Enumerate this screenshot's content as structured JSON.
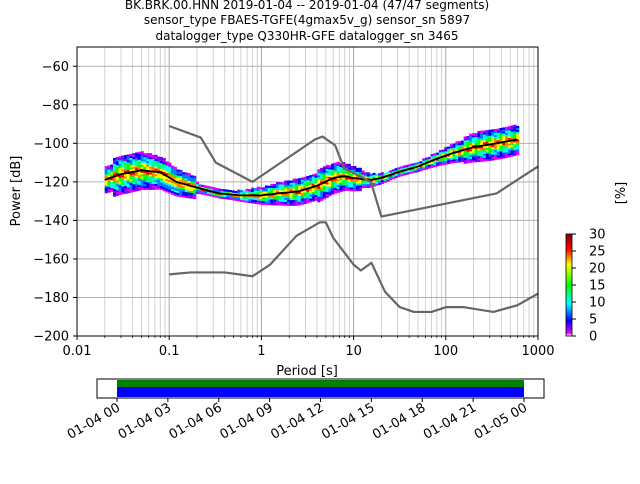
{
  "title": {
    "line1": "BK.BRK.00.HNN   2019-01-04 -- 2019-01-04  (47/47 segments)",
    "line2": "sensor_type FBAES-TGFE(4gmax5v_g) sensor_sn 5897",
    "line3": "datalogger_type Q330HR-GFE datalogger_sn 3465"
  },
  "chart_data": {
    "type": "heatmap",
    "xlabel": "Period [s]",
    "ylabel": "Power [dB]",
    "x_scale": "log",
    "xlim": [
      0.01,
      1000
    ],
    "ylim": [
      -200,
      -50
    ],
    "grid": true,
    "x_ticks": [
      {
        "value": 0.01,
        "label": "0.01"
      },
      {
        "value": 0.1,
        "label": "0.1"
      },
      {
        "value": 1,
        "label": "1"
      },
      {
        "value": 10,
        "label": "10"
      },
      {
        "value": 100,
        "label": "100"
      },
      {
        "value": 1000,
        "label": "1000"
      }
    ],
    "y_ticks": [
      {
        "value": -60,
        "label": "−60"
      },
      {
        "value": -80,
        "label": "−80"
      },
      {
        "value": -100,
        "label": "−100"
      },
      {
        "value": -120,
        "label": "−120"
      },
      {
        "value": -140,
        "label": "−140"
      },
      {
        "value": -160,
        "label": "−160"
      },
      {
        "value": -180,
        "label": "−180"
      },
      {
        "value": -200,
        "label": "−200"
      }
    ],
    "colorbar": {
      "label": "[%]",
      "range": [
        0,
        30
      ],
      "ticks": [
        {
          "value": 0,
          "label": "0"
        },
        {
          "value": 5,
          "label": "5"
        },
        {
          "value": 10,
          "label": "10"
        },
        {
          "value": 15,
          "label": "15"
        },
        {
          "value": 20,
          "label": "20"
        },
        {
          "value": 25,
          "label": "25"
        },
        {
          "value": 30,
          "label": "30"
        }
      ]
    },
    "series": [
      {
        "role": "median",
        "color": "#000000",
        "points": [
          [
            0.02,
            -119
          ],
          [
            0.03,
            -116
          ],
          [
            0.05,
            -114
          ],
          [
            0.08,
            -115
          ],
          [
            0.12,
            -120
          ],
          [
            0.2,
            -123
          ],
          [
            0.35,
            -126
          ],
          [
            0.6,
            -127
          ],
          [
            1,
            -127
          ],
          [
            1.5,
            -126
          ],
          [
            2.5,
            -125
          ],
          [
            4,
            -122
          ],
          [
            6,
            -118
          ],
          [
            8,
            -117
          ],
          [
            10,
            -118
          ],
          [
            15,
            -119
          ],
          [
            20,
            -118
          ],
          [
            30,
            -115
          ],
          [
            50,
            -112
          ],
          [
            80,
            -108
          ],
          [
            120,
            -105
          ],
          [
            200,
            -102
          ],
          [
            350,
            -100
          ],
          [
            600,
            -98
          ]
        ]
      },
      {
        "role": "nhnm",
        "color": "#666666",
        "points": [
          [
            0.1,
            -91
          ],
          [
            0.22,
            -97
          ],
          [
            0.32,
            -110
          ],
          [
            0.8,
            -120
          ],
          [
            3.8,
            -98
          ],
          [
            4.6,
            -96.5
          ],
          [
            6.3,
            -101
          ],
          [
            7.9,
            -113
          ],
          [
            15.4,
            -120
          ],
          [
            20,
            -138
          ],
          [
            354.8,
            -126
          ],
          [
            1000,
            -112
          ]
        ]
      },
      {
        "role": "nlnm",
        "color": "#666666",
        "points": [
          [
            0.1,
            -168
          ],
          [
            0.17,
            -167
          ],
          [
            0.4,
            -167
          ],
          [
            0.8,
            -169
          ],
          [
            1.24,
            -163
          ],
          [
            2.4,
            -148
          ],
          [
            4.3,
            -141
          ],
          [
            5,
            -141
          ],
          [
            6,
            -149
          ],
          [
            10,
            -163
          ],
          [
            12,
            -166
          ],
          [
            15.6,
            -162
          ],
          [
            21.9,
            -177
          ],
          [
            31.6,
            -185
          ],
          [
            45,
            -187.5
          ],
          [
            70,
            -187.5
          ],
          [
            101,
            -185
          ],
          [
            154,
            -185
          ],
          [
            328,
            -187.5
          ],
          [
            600,
            -184
          ],
          [
            1000,
            -178
          ]
        ]
      }
    ],
    "time_axis": {
      "ticks": [
        "01-04 00",
        "01-04 03",
        "01-04 06",
        "01-04 09",
        "01-04 12",
        "01-04 15",
        "01-04 18",
        "01-04 21",
        "01-05 00"
      ],
      "coverage_colors": [
        "#008000",
        "#0000ff"
      ]
    }
  }
}
